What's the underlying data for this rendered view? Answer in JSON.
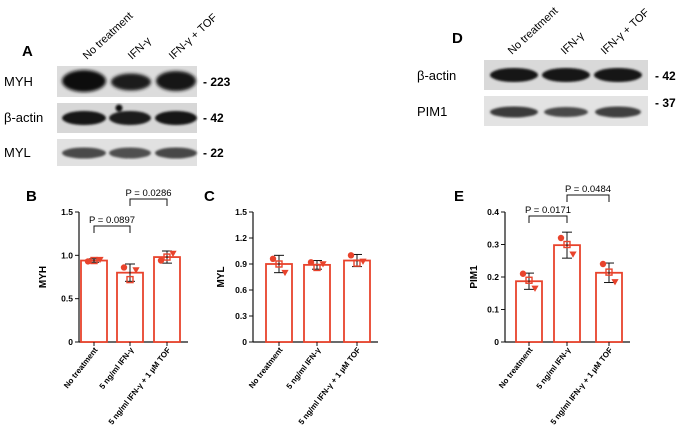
{
  "panels": {
    "A": {
      "letter": "A",
      "lanes": [
        "No treatment",
        "IFN-γ",
        "IFN-γ + TOF"
      ],
      "blots": [
        {
          "label": "MYH",
          "kda": "- 223"
        },
        {
          "label": "β-actin",
          "kda": "- 42"
        },
        {
          "label": "MYL",
          "kda": "- 22"
        }
      ]
    },
    "D": {
      "letter": "D",
      "lanes": [
        "No treatment",
        "IFN-γ",
        "IFN-γ + TOF"
      ],
      "blots": [
        {
          "label": "β-actin",
          "kda": "- 42"
        },
        {
          "label": "PIM1",
          "kda": "- 37"
        }
      ]
    }
  },
  "chart_data": [
    {
      "panel": "B",
      "type": "bar",
      "ylabel": "MYH",
      "ylim": [
        0,
        1.5
      ],
      "yticks": [
        "0",
        "0.5",
        "1.0",
        "1.5"
      ],
      "categories": [
        "No treatment",
        "5 ng/ml IFN-γ",
        "5 ng/ml IFN-γ + 1 µM TOF"
      ],
      "values": [
        0.94,
        0.8,
        0.98
      ],
      "errors": [
        0.02,
        0.1,
        0.07
      ],
      "points": [
        [
          0.93,
          0.94,
          0.95
        ],
        [
          0.86,
          0.72,
          0.83
        ],
        [
          0.94,
          0.98,
          1.02
        ]
      ],
      "comparisons": [
        {
          "from": 0,
          "to": 1,
          "label": "P = 0.0897"
        },
        {
          "from": 1,
          "to": 2,
          "label": "P = 0.0286"
        }
      ]
    },
    {
      "panel": "C",
      "type": "bar",
      "ylabel": "MYL",
      "ylim": [
        0,
        1.5
      ],
      "yticks": [
        "0",
        "0.3",
        "0.6",
        "0.9",
        "1.2",
        "1.5"
      ],
      "categories": [
        "No treatment",
        "5 ng/ml IFN-γ",
        "5 ng/ml IFN-γ + 1 µM TOF"
      ],
      "values": [
        0.9,
        0.89,
        0.94
      ],
      "errors": [
        0.1,
        0.05,
        0.07
      ],
      "points": [
        [
          0.96,
          0.9,
          0.8
        ],
        [
          0.92,
          0.86,
          0.9
        ],
        [
          1.0,
          0.91,
          0.93
        ]
      ],
      "comparisons": []
    },
    {
      "panel": "E",
      "type": "bar",
      "ylabel": "PIM1",
      "ylim": [
        0,
        0.4
      ],
      "yticks": [
        "0",
        "0.1",
        "0.2",
        "0.3",
        "0.4"
      ],
      "categories": [
        "No treatment",
        "5 ng/ml IFN-γ",
        "5 ng/ml IFN-γ + 1 µM TOF"
      ],
      "values": [
        0.187,
        0.298,
        0.213
      ],
      "errors": [
        0.025,
        0.04,
        0.03
      ],
      "points": [
        [
          0.21,
          0.19,
          0.165
        ],
        [
          0.32,
          0.3,
          0.27
        ],
        [
          0.24,
          0.215,
          0.185
        ]
      ],
      "comparisons": [
        {
          "from": 0,
          "to": 1,
          "label": "P = 0.0171"
        },
        {
          "from": 1,
          "to": 2,
          "label": "P = 0.0484"
        }
      ]
    }
  ],
  "colors": {
    "accent": "#e8432c",
    "text": "#111111",
    "band": "#1a1a1a"
  }
}
